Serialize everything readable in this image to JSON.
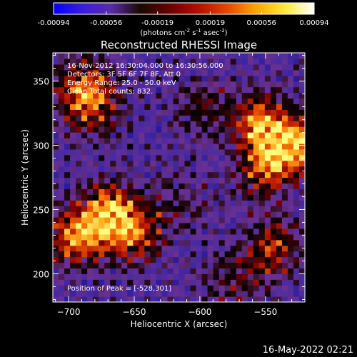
{
  "colorbar": {
    "ticks": [
      "-0.00094",
      "-0.00056",
      "-0.00019",
      "0.00019",
      "0.00056",
      "0.00094"
    ],
    "tick_values": [
      -0.00094,
      -0.00056,
      -0.00019,
      0.00019,
      0.00056,
      0.00094
    ],
    "range": [
      -0.00094,
      0.00094
    ],
    "unit_prefix": "(photons cm",
    "unit_exp1": "-2",
    "unit_mid": " s",
    "unit_exp2": "-1",
    "unit_mid2": " asec",
    "unit_exp3": "-2",
    "unit_suffix": ")",
    "colors": [
      "#0000ff",
      "#3b1fd6",
      "#5a2aa8",
      "#1a0800",
      "#6a0000",
      "#b01000",
      "#e04a00",
      "#ffa500",
      "#ffe840",
      "#ffffff"
    ]
  },
  "chart_data": {
    "type": "heatmap",
    "title": "Reconstructed RHESSI Image",
    "xlabel": "Heliocentric X (arcsec)",
    "ylabel": "Heliocentric Y (arcsec)",
    "xlim": [
      -712,
      -520
    ],
    "ylim": [
      178,
      372
    ],
    "xticks": [
      -700,
      -650,
      -600,
      -550
    ],
    "yticks": [
      200,
      250,
      300,
      350
    ],
    "xtick_labels": [
      "−700",
      "−650",
      "−600",
      "−550"
    ],
    "ytick_labels": [
      "200",
      "250",
      "300",
      "350"
    ],
    "info_lines": [
      "16-Nov-2012 16:30:04.000 to 16:30:56.000",
      "Detectors: 3F 5F 6F 7F 8F, Att 0",
      "Energy Range: 25.0 - 50.0 keV",
      "Clean     Total counts: 832."
    ],
    "peak_label": "Position of Peak = [-528,301]",
    "peak": [
      -528,
      301
    ],
    "sources": [
      {
        "x": -530,
        "y": 300,
        "strength": 1.0
      },
      {
        "x": -555,
        "y": 318,
        "strength": 0.75
      },
      {
        "x": -552,
        "y": 280,
        "strength": 0.55
      },
      {
        "x": -668,
        "y": 248,
        "strength": 0.85
      },
      {
        "x": -695,
        "y": 230,
        "strength": 0.8
      },
      {
        "x": -650,
        "y": 230,
        "strength": 0.55
      },
      {
        "x": -682,
        "y": 330,
        "strength": 0.6
      },
      {
        "x": -690,
        "y": 350,
        "strength": 0.5
      },
      {
        "x": -545,
        "y": 220,
        "strength": 0.6
      },
      {
        "x": -600,
        "y": 330,
        "strength": 0.35
      },
      {
        "x": -615,
        "y": 255,
        "strength": 0.3
      },
      {
        "x": -575,
        "y": 195,
        "strength": 0.35
      }
    ]
  },
  "footer": {
    "timestamp": "16-May-2022 02:21"
  }
}
